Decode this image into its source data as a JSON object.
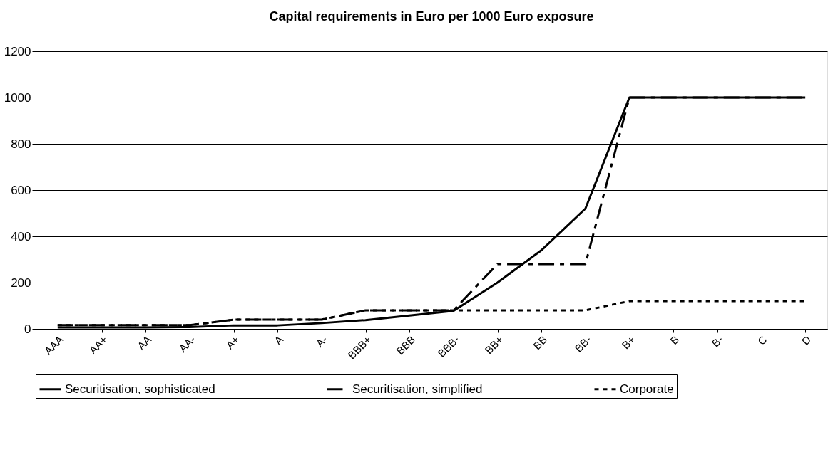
{
  "chart_data": {
    "type": "line",
    "title": "Capital requirements in Euro per 1000 Euro exposure",
    "categories": [
      "AAA",
      "AA+",
      "AA",
      "AA-",
      "A+",
      "A",
      "A-",
      "BBB+",
      "BBB",
      "BBB-",
      "BB+",
      "BB",
      "BB-",
      "B+",
      "B",
      "B-",
      "C",
      "D"
    ],
    "series": [
      {
        "name": "Securitisation, sophisticated",
        "color": "#000000",
        "line_style": "solid",
        "values": [
          6,
          6,
          6,
          8,
          15,
          15,
          25,
          38,
          58,
          78,
          200,
          340,
          520,
          1000,
          1000,
          1000,
          1000,
          1000
        ]
      },
      {
        "name": "Securitisation, simplified",
        "color": "#000000",
        "line_style": "dashed",
        "values": [
          16,
          16,
          16,
          16,
          40,
          40,
          40,
          80,
          80,
          80,
          280,
          280,
          280,
          1000,
          1000,
          1000,
          1000,
          1000
        ]
      },
      {
        "name": "Corporate",
        "color": "#000000",
        "line_style": "dotted",
        "values": [
          16,
          16,
          16,
          16,
          40,
          40,
          40,
          80,
          80,
          80,
          80,
          80,
          80,
          120,
          120,
          120,
          120,
          120
        ]
      }
    ],
    "ylim": [
      0,
      1200
    ],
    "yticks": [
      0,
      200,
      400,
      600,
      800,
      1000,
      1200
    ],
    "grid": "y",
    "legend": "bottom",
    "marker": "none"
  }
}
